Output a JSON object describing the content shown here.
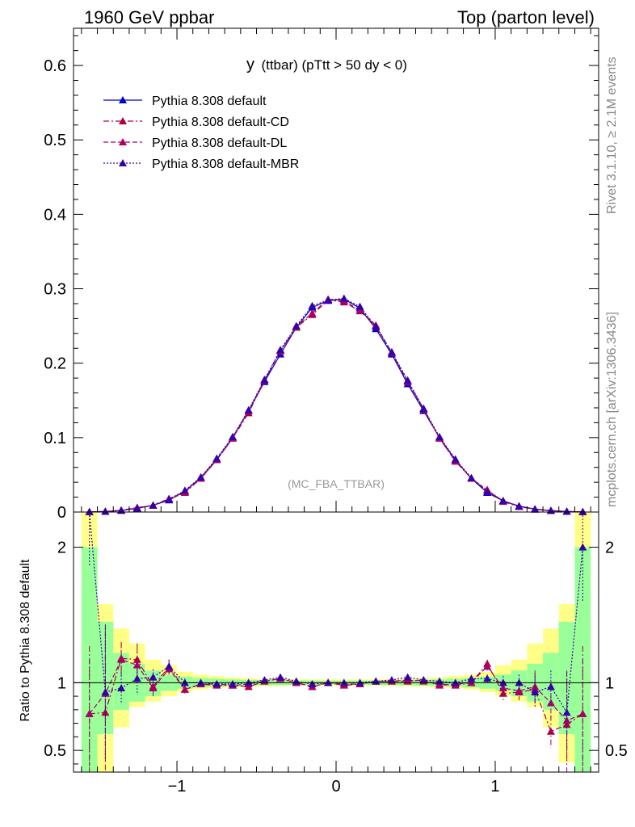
{
  "header": {
    "left": "1960 GeV ppbar",
    "right": "Top (parton level)"
  },
  "side_labels": {
    "rivet": "Rivet 3.1.10, ≥ 2.1M events",
    "mcplots": "mcplots.cern.ch [arXiv:1306.3436]"
  },
  "plot_title": {
    "main": "y",
    "sub": "(ttbar) (pTtt > 50 dy < 0)"
  },
  "analysis_tag": "(MC_FBA_TTBAR)",
  "ratio_ylabel": "Ratio to Pythia 8.308 default",
  "colors": {
    "default": "#0000cc",
    "cd": "#aa0044",
    "dl": "#aa0066",
    "mbr": "#3300aa",
    "band_inner": "#99ff99",
    "band_outer": "#ffff88"
  },
  "chart_data": [
    {
      "type": "line",
      "panel": "main",
      "xlim": [
        -1.65,
        1.65
      ],
      "ylim": [
        0,
        0.65
      ],
      "yticks": [
        0,
        0.1,
        0.2,
        0.3,
        0.4,
        0.5,
        0.6
      ],
      "ytick_labels": [
        "0",
        "0.1",
        "0.2",
        "0.3",
        "0.4",
        "0.5",
        "0.6"
      ],
      "legend_position": "top-left",
      "x": [
        -1.55,
        -1.45,
        -1.35,
        -1.25,
        -1.15,
        -1.05,
        -0.95,
        -0.85,
        -0.75,
        -0.65,
        -0.55,
        -0.45,
        -0.35,
        -0.25,
        -0.15,
        -0.05,
        0.05,
        0.15,
        0.25,
        0.35,
        0.45,
        0.55,
        0.65,
        0.75,
        0.85,
        0.95,
        1.05,
        1.15,
        1.25,
        1.35,
        1.45,
        1.55
      ],
      "series": [
        {
          "name": "Pythia 8.308 default",
          "style": "solid",
          "key": "default",
          "values": [
            0.0003,
            0.0008,
            0.002,
            0.005,
            0.009,
            0.016,
            0.028,
            0.046,
            0.071,
            0.1,
            0.136,
            0.175,
            0.212,
            0.248,
            0.275,
            0.284,
            0.286,
            0.274,
            0.246,
            0.212,
            0.172,
            0.136,
            0.1,
            0.07,
            0.045,
            0.026,
            0.015,
            0.008,
            0.004,
            0.002,
            0.0008,
            0.0003
          ]
        },
        {
          "name": "Pythia 8.308 default-CD",
          "style": "dashdot",
          "key": "cd",
          "values": [
            0.0002,
            0.0007,
            0.0023,
            0.006,
            0.009,
            0.017,
            0.026,
            0.045,
            0.07,
            0.099,
            0.133,
            0.177,
            0.217,
            0.248,
            0.265,
            0.285,
            0.282,
            0.27,
            0.25,
            0.214,
            0.176,
            0.138,
            0.099,
            0.068,
            0.045,
            0.03,
            0.014,
            0.007,
            0.004,
            0.0017,
            0.0006,
            0.0002
          ]
        },
        {
          "name": "Pythia 8.308 default-DL",
          "style": "dashed",
          "key": "dl",
          "values": [
            0.0002,
            0.0007,
            0.0024,
            0.0057,
            0.009,
            0.018,
            0.027,
            0.045,
            0.07,
            0.099,
            0.136,
            0.177,
            0.216,
            0.249,
            0.267,
            0.286,
            0.284,
            0.271,
            0.251,
            0.214,
            0.175,
            0.139,
            0.099,
            0.069,
            0.045,
            0.029,
            0.015,
            0.0075,
            0.0035,
            0.0017,
            0.0006,
            0.0002
          ]
        },
        {
          "name": "Pythia 8.308 default-MBR",
          "style": "dotted",
          "key": "mbr",
          "values": [
            0.0003,
            0.0007,
            0.0019,
            0.005,
            0.009,
            0.017,
            0.029,
            0.047,
            0.072,
            0.101,
            0.137,
            0.178,
            0.218,
            0.25,
            0.277,
            0.285,
            0.287,
            0.276,
            0.249,
            0.215,
            0.177,
            0.139,
            0.101,
            0.071,
            0.046,
            0.027,
            0.015,
            0.0078,
            0.0037,
            0.0019,
            0.0008,
            0.0003
          ]
        }
      ]
    },
    {
      "type": "line",
      "panel": "ratio",
      "xlim": [
        -1.65,
        1.65
      ],
      "ylim": [
        0.34,
        2.26
      ],
      "ylabel": "Ratio to Pythia 8.308 default",
      "xticks": [
        -1,
        0,
        1
      ],
      "xtick_labels": [
        "−1",
        "0",
        "1"
      ],
      "yticks": [
        0.5,
        1,
        2
      ],
      "ytick_labels": [
        "0.5",
        "1",
        "2"
      ],
      "x": [
        -1.55,
        -1.45,
        -1.35,
        -1.25,
        -1.15,
        -1.05,
        -0.95,
        -0.85,
        -0.75,
        -0.65,
        -0.55,
        -0.45,
        -0.35,
        -0.25,
        -0.15,
        -0.05,
        0.05,
        0.15,
        0.25,
        0.35,
        0.45,
        0.55,
        0.65,
        0.75,
        0.85,
        0.95,
        1.05,
        1.15,
        1.25,
        1.35,
        1.45,
        1.55
      ],
      "band_inner": [
        [
          0.34,
          2.0
        ],
        [
          0.62,
          1.45
        ],
        [
          0.8,
          1.22
        ],
        [
          0.86,
          1.14
        ],
        [
          0.9,
          1.09
        ],
        [
          0.94,
          1.06
        ],
        [
          0.955,
          1.045
        ],
        [
          0.965,
          1.035
        ],
        [
          0.97,
          1.03
        ],
        [
          0.975,
          1.025
        ],
        [
          0.978,
          1.022
        ],
        [
          0.98,
          1.02
        ],
        [
          0.982,
          1.018
        ],
        [
          0.983,
          1.017
        ],
        [
          0.984,
          1.016
        ],
        [
          0.985,
          1.015
        ],
        [
          0.985,
          1.015
        ],
        [
          0.984,
          1.016
        ],
        [
          0.983,
          1.017
        ],
        [
          0.982,
          1.018
        ],
        [
          0.98,
          1.02
        ],
        [
          0.978,
          1.022
        ],
        [
          0.975,
          1.025
        ],
        [
          0.97,
          1.03
        ],
        [
          0.965,
          1.035
        ],
        [
          0.955,
          1.045
        ],
        [
          0.94,
          1.06
        ],
        [
          0.9,
          1.09
        ],
        [
          0.86,
          1.14
        ],
        [
          0.8,
          1.22
        ],
        [
          0.62,
          1.45
        ],
        [
          0.34,
          2.0
        ]
      ],
      "band_outer": [
        [
          0.34,
          2.26
        ],
        [
          0.34,
          1.58
        ],
        [
          0.67,
          1.4
        ],
        [
          0.82,
          1.29
        ],
        [
          0.86,
          1.17
        ],
        [
          0.9,
          1.13
        ],
        [
          0.93,
          1.08
        ],
        [
          0.95,
          1.06
        ],
        [
          0.96,
          1.05
        ],
        [
          0.965,
          1.04
        ],
        [
          0.97,
          1.035
        ],
        [
          0.972,
          1.03
        ],
        [
          0.975,
          1.028
        ],
        [
          0.977,
          1.026
        ],
        [
          0.978,
          1.025
        ],
        [
          0.978,
          1.024
        ],
        [
          0.978,
          1.024
        ],
        [
          0.978,
          1.025
        ],
        [
          0.977,
          1.026
        ],
        [
          0.975,
          1.028
        ],
        [
          0.972,
          1.03
        ],
        [
          0.97,
          1.035
        ],
        [
          0.965,
          1.04
        ],
        [
          0.96,
          1.05
        ],
        [
          0.95,
          1.06
        ],
        [
          0.93,
          1.08
        ],
        [
          0.9,
          1.13
        ],
        [
          0.86,
          1.17
        ],
        [
          0.82,
          1.29
        ],
        [
          0.67,
          1.4
        ],
        [
          0.41,
          1.58
        ],
        [
          0.34,
          2.26
        ]
      ],
      "series": [
        {
          "name": "Pythia 8.308 default-CD",
          "style": "dashdot",
          "key": "cd",
          "values": [
            0.77,
            0.78,
            1.18,
            1.17,
            0.97,
            1.12,
            0.95,
            0.99,
            0.98,
            0.98,
            0.97,
            1.01,
            1.03,
            1.0,
            0.97,
            1.0,
            0.98,
            0.99,
            1.01,
            1.01,
            1.02,
            1.01,
            0.99,
            0.98,
            1.0,
            1.14,
            0.92,
            0.93,
            0.95,
            0.64,
            0.69,
            0.77
          ],
          "err": [
            0.5,
            0.6,
            0.12,
            0.12,
            0.06,
            0.05,
            0.03,
            0.02,
            0.01,
            0.01,
            0.01,
            0.01,
            0.01,
            0.01,
            0.01,
            0.01,
            0.01,
            0.01,
            0.01,
            0.01,
            0.01,
            0.01,
            0.01,
            0.01,
            0.02,
            0.03,
            0.05,
            0.06,
            0.12,
            0.12,
            0.4,
            0.5
          ]
        },
        {
          "name": "Pythia 8.308 default-DL",
          "style": "dashed",
          "key": "dl",
          "values": [
            0.77,
            0.92,
            1.17,
            1.13,
            0.96,
            1.1,
            0.95,
            0.99,
            0.99,
            0.98,
            0.99,
            1.01,
            1.03,
            1.0,
            0.97,
            1.0,
            0.99,
            0.99,
            1.01,
            1.01,
            1.01,
            1.02,
            0.98,
            0.99,
            1.0,
            1.12,
            0.96,
            0.94,
            0.97,
            0.85,
            0.72,
            0.77
          ],
          "err": [
            0.4,
            0.5,
            0.12,
            0.12,
            0.06,
            0.05,
            0.03,
            0.02,
            0.01,
            0.01,
            0.01,
            0.01,
            0.01,
            0.01,
            0.01,
            0.01,
            0.01,
            0.01,
            0.01,
            0.01,
            0.01,
            0.01,
            0.01,
            0.01,
            0.02,
            0.03,
            0.05,
            0.06,
            0.12,
            0.12,
            0.3,
            0.4
          ]
        },
        {
          "name": "Pythia 8.308 default-MBR",
          "style": "dotted",
          "key": "mbr",
          "values": [
            2.26,
            0.93,
            0.96,
            1.03,
            1.04,
            1.12,
            1.0,
            1.0,
            0.99,
            0.99,
            1.0,
            1.02,
            1.04,
            1.01,
            0.99,
            1.0,
            1.0,
            1.0,
            1.01,
            1.02,
            1.04,
            1.02,
            1.01,
            1.0,
            1.03,
            1.03,
            1.0,
            1.0,
            0.93,
            0.97,
            0.78,
            2.0
          ],
          "err": [
            0.4,
            0.5,
            0.12,
            0.12,
            0.06,
            0.05,
            0.03,
            0.02,
            0.01,
            0.01,
            0.01,
            0.01,
            0.01,
            0.01,
            0.01,
            0.01,
            0.01,
            0.01,
            0.01,
            0.01,
            0.01,
            0.01,
            0.01,
            0.01,
            0.02,
            0.03,
            0.05,
            0.06,
            0.12,
            0.12,
            0.3,
            0.4
          ]
        }
      ]
    }
  ]
}
